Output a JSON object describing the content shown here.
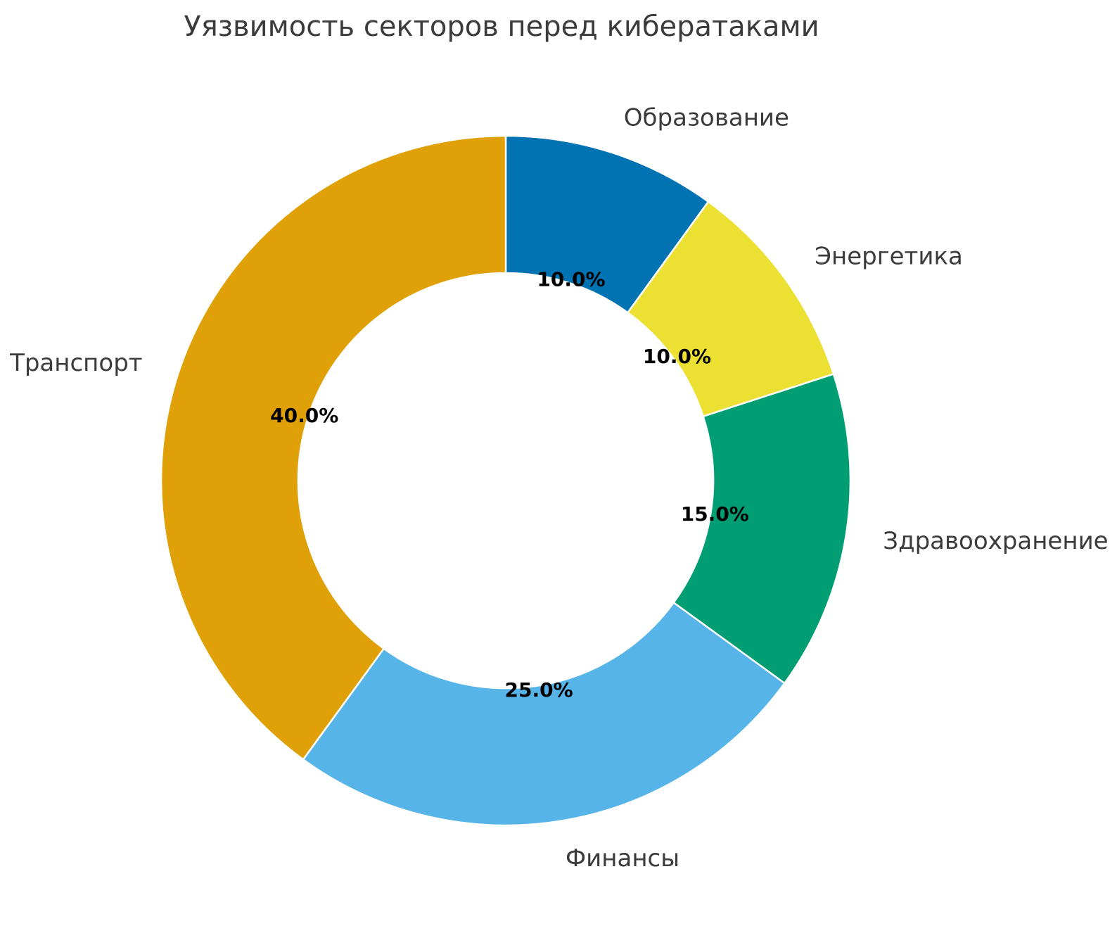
{
  "chart_data": {
    "type": "pie",
    "subtype": "donut",
    "title": "Уязвимость секторов перед кибератаками",
    "categories": [
      "Образование",
      "Энергетика",
      "Здравоохранение",
      "Финансы",
      "Транспорт"
    ],
    "values": [
      10.0,
      10.0,
      15.0,
      25.0,
      40.0
    ],
    "value_labels": [
      "10.0%",
      "10.0%",
      "15.0%",
      "25.0%",
      "40.0%"
    ],
    "colors": [
      "#0173b2",
      "#ece133",
      "#029e73",
      "#56b4e9",
      "#e0a008"
    ],
    "start_angle_deg": 90,
    "direction": "clockwise",
    "donut_hole_ratio": 0.6,
    "legend": "none",
    "grid": "off",
    "title_color": "#3b3b3b",
    "label_color": "#3b3b3b",
    "pct_label_color": "#000000",
    "wedge_edge_color": "#ffffff",
    "background_color": "#ffffff"
  }
}
